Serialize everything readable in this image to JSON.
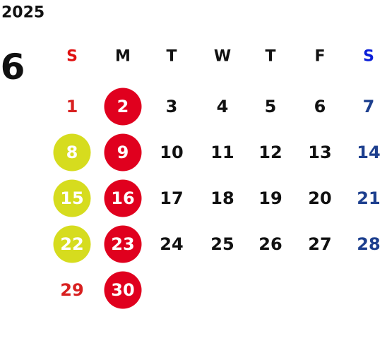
{
  "calendar": {
    "year": "2025",
    "month": "6",
    "weekdays": [
      "S",
      "M",
      "T",
      "W",
      "T",
      "F",
      "S"
    ],
    "weeks": [
      [
        {
          "text": "1",
          "mark": "none"
        },
        {
          "text": "2",
          "mark": "red"
        },
        {
          "text": "3",
          "mark": "none"
        },
        {
          "text": "4",
          "mark": "none"
        },
        {
          "text": "5",
          "mark": "none"
        },
        {
          "text": "6",
          "mark": "none"
        },
        {
          "text": "7",
          "mark": "none"
        }
      ],
      [
        {
          "text": "8",
          "mark": "yellow"
        },
        {
          "text": "9",
          "mark": "red"
        },
        {
          "text": "10",
          "mark": "none"
        },
        {
          "text": "11",
          "mark": "none"
        },
        {
          "text": "12",
          "mark": "none"
        },
        {
          "text": "13",
          "mark": "none"
        },
        {
          "text": "14",
          "mark": "none"
        }
      ],
      [
        {
          "text": "15",
          "mark": "yellow"
        },
        {
          "text": "16",
          "mark": "red"
        },
        {
          "text": "17",
          "mark": "none"
        },
        {
          "text": "18",
          "mark": "none"
        },
        {
          "text": "19",
          "mark": "none"
        },
        {
          "text": "20",
          "mark": "none"
        },
        {
          "text": "21",
          "mark": "none"
        }
      ],
      [
        {
          "text": "22",
          "mark": "yellow"
        },
        {
          "text": "23",
          "mark": "red"
        },
        {
          "text": "24",
          "mark": "none"
        },
        {
          "text": "25",
          "mark": "none"
        },
        {
          "text": "26",
          "mark": "none"
        },
        {
          "text": "27",
          "mark": "none"
        },
        {
          "text": "28",
          "mark": "none"
        }
      ],
      [
        {
          "text": "29",
          "mark": "none"
        },
        {
          "text": "30",
          "mark": "red"
        },
        null,
        null,
        null,
        null,
        null
      ]
    ]
  }
}
